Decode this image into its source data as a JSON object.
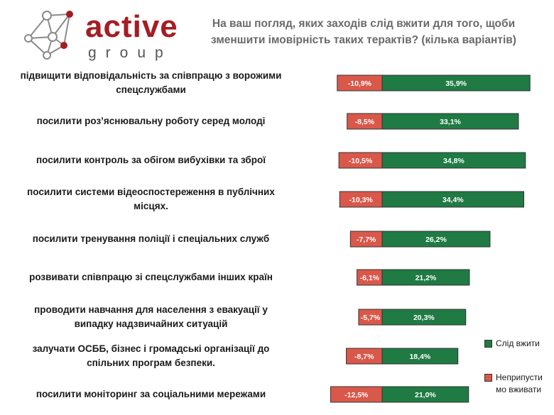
{
  "brand": {
    "word": "active",
    "sub": "group"
  },
  "colors": {
    "brand": "#a51d22",
    "positive": "#1f7a44",
    "negative": "#d9584a"
  },
  "chart_data": {
    "type": "bar",
    "title": "На ваш погляд, яких заходів слід вжити для того, щоби зменшити імовірність таких терактів? (кілька варіантів)",
    "categories": [
      "підвищити відповідальність за співпрацю з ворожими спецслужбами",
      "посилити роз’яснювальну роботу серед молоді",
      "посилити контроль за обігом вибухівки та зброї",
      "посилити системи відеоспостереження в публічних місцях.",
      "посилити тренування поліції і спеціальних служб",
      "розвивати співпрацю зі спецслужбами інших країн",
      "проводити навчання для населення з евакуації у випадку надзвичайних ситуацій",
      "залучати ОСББ, бізнес і громадські організації до спільних програм безпеки.",
      "посилити моніторинг за соціальними мережами"
    ],
    "series": [
      {
        "name": "Неприпустимо вживати",
        "values": [
          -10.9,
          -8.5,
          -10.5,
          -10.3,
          -7.7,
          -6.1,
          -5.7,
          -8.7,
          -12.5
        ],
        "labels": [
          "-10,9%",
          "-8,5%",
          "-10,5%",
          "-10,3%",
          "-7,7%",
          "-6,1%",
          "-5,7%",
          "-8,7%",
          "-12,5%"
        ]
      },
      {
        "name": "Слід вжити",
        "values": [
          35.9,
          33.1,
          34.8,
          34.4,
          26.2,
          21.2,
          20.3,
          18.4,
          21.0
        ],
        "labels": [
          "35,9%",
          "33,1%",
          "34,8%",
          "34,4%",
          "26,2%",
          "21,2%",
          "20,3%",
          "18,4%",
          "21,0%"
        ]
      }
    ],
    "legend": [
      {
        "name": "Слід вжити",
        "lines": [
          "Слід вжити"
        ]
      },
      {
        "name": "Неприпустимо вживати",
        "lines": [
          "Неприпусти",
          "мо вживати"
        ]
      }
    ],
    "legend_position": "bottom-right"
  }
}
